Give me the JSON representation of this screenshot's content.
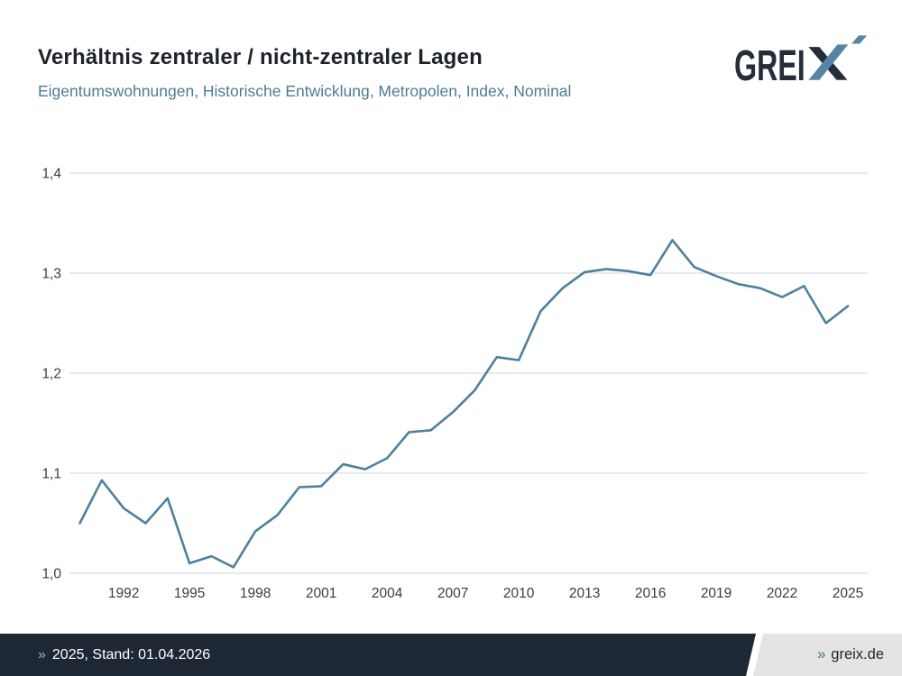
{
  "header": {
    "title": "Verhältnis zentraler / nicht-zentraler Lagen",
    "subtitle": "Eigentumswohnungen, Historische Entwicklung, Metropolen, Index, Nominal"
  },
  "logo": {
    "letters": "GREI",
    "x_letter": "X"
  },
  "footer": {
    "left_marker": "»",
    "left_text": "2025, Stand: 01.04.2026",
    "right_marker": "»",
    "right_text": "greix.de"
  },
  "colors": {
    "line": "#4e809e",
    "grid": "#e3e3e7",
    "tick_label": "#3c3c42",
    "title": "#1e232b",
    "subtitle": "#4d7c93",
    "footer_bg": "#1d2834",
    "footer_light_bg": "#e5e4e3",
    "footer_marker_light": "#92b4c6",
    "footer_marker_dark": "#41708a",
    "logo_dark": "#242e3a",
    "logo_blue": "#5684a2"
  },
  "chart_data": {
    "type": "line",
    "title": "Verhältnis zentraler / nicht-zentraler Lagen",
    "subtitle": "Eigentumswohnungen, Historische Entwicklung, Metropolen, Index, Nominal",
    "xlabel": "",
    "ylabel": "",
    "grid": "horizontal",
    "legend": "none",
    "line_color": "#4e809e",
    "decimal_separator": ",",
    "xlim": [
      1990,
      2025
    ],
    "ylim": [
      1.0,
      1.4
    ],
    "x": [
      1990,
      1991,
      1992,
      1993,
      1994,
      1995,
      1996,
      1997,
      1998,
      1999,
      2000,
      2001,
      2002,
      2003,
      2004,
      2005,
      2006,
      2007,
      2008,
      2009,
      2010,
      2011,
      2012,
      2013,
      2014,
      2015,
      2016,
      2017,
      2018,
      2019,
      2020,
      2021,
      2022,
      2023,
      2024,
      2025
    ],
    "values": [
      1.05,
      1.093,
      1.065,
      1.05,
      1.075,
      1.01,
      1.017,
      1.006,
      1.042,
      1.058,
      1.086,
      1.087,
      1.109,
      1.104,
      1.115,
      1.141,
      1.143,
      1.161,
      1.183,
      1.216,
      1.213,
      1.262,
      1.285,
      1.301,
      1.304,
      1.302,
      1.298,
      1.333,
      1.306,
      1.297,
      1.289,
      1.285,
      1.276,
      1.287,
      1.25,
      1.267
    ],
    "y_ticks": [
      1.0,
      1.1,
      1.2,
      1.3,
      1.4
    ],
    "y_tick_labels": [
      "1,0",
      "1,1",
      "1,2",
      "1,3",
      "1,4"
    ],
    "x_ticks": [
      1992,
      1995,
      1998,
      2001,
      2004,
      2007,
      2010,
      2013,
      2016,
      2019,
      2022,
      2025
    ],
    "x_tick_labels": [
      "1992",
      "1995",
      "1998",
      "2001",
      "2004",
      "2007",
      "2010",
      "2013",
      "2016",
      "2019",
      "2022",
      "2025"
    ]
  }
}
